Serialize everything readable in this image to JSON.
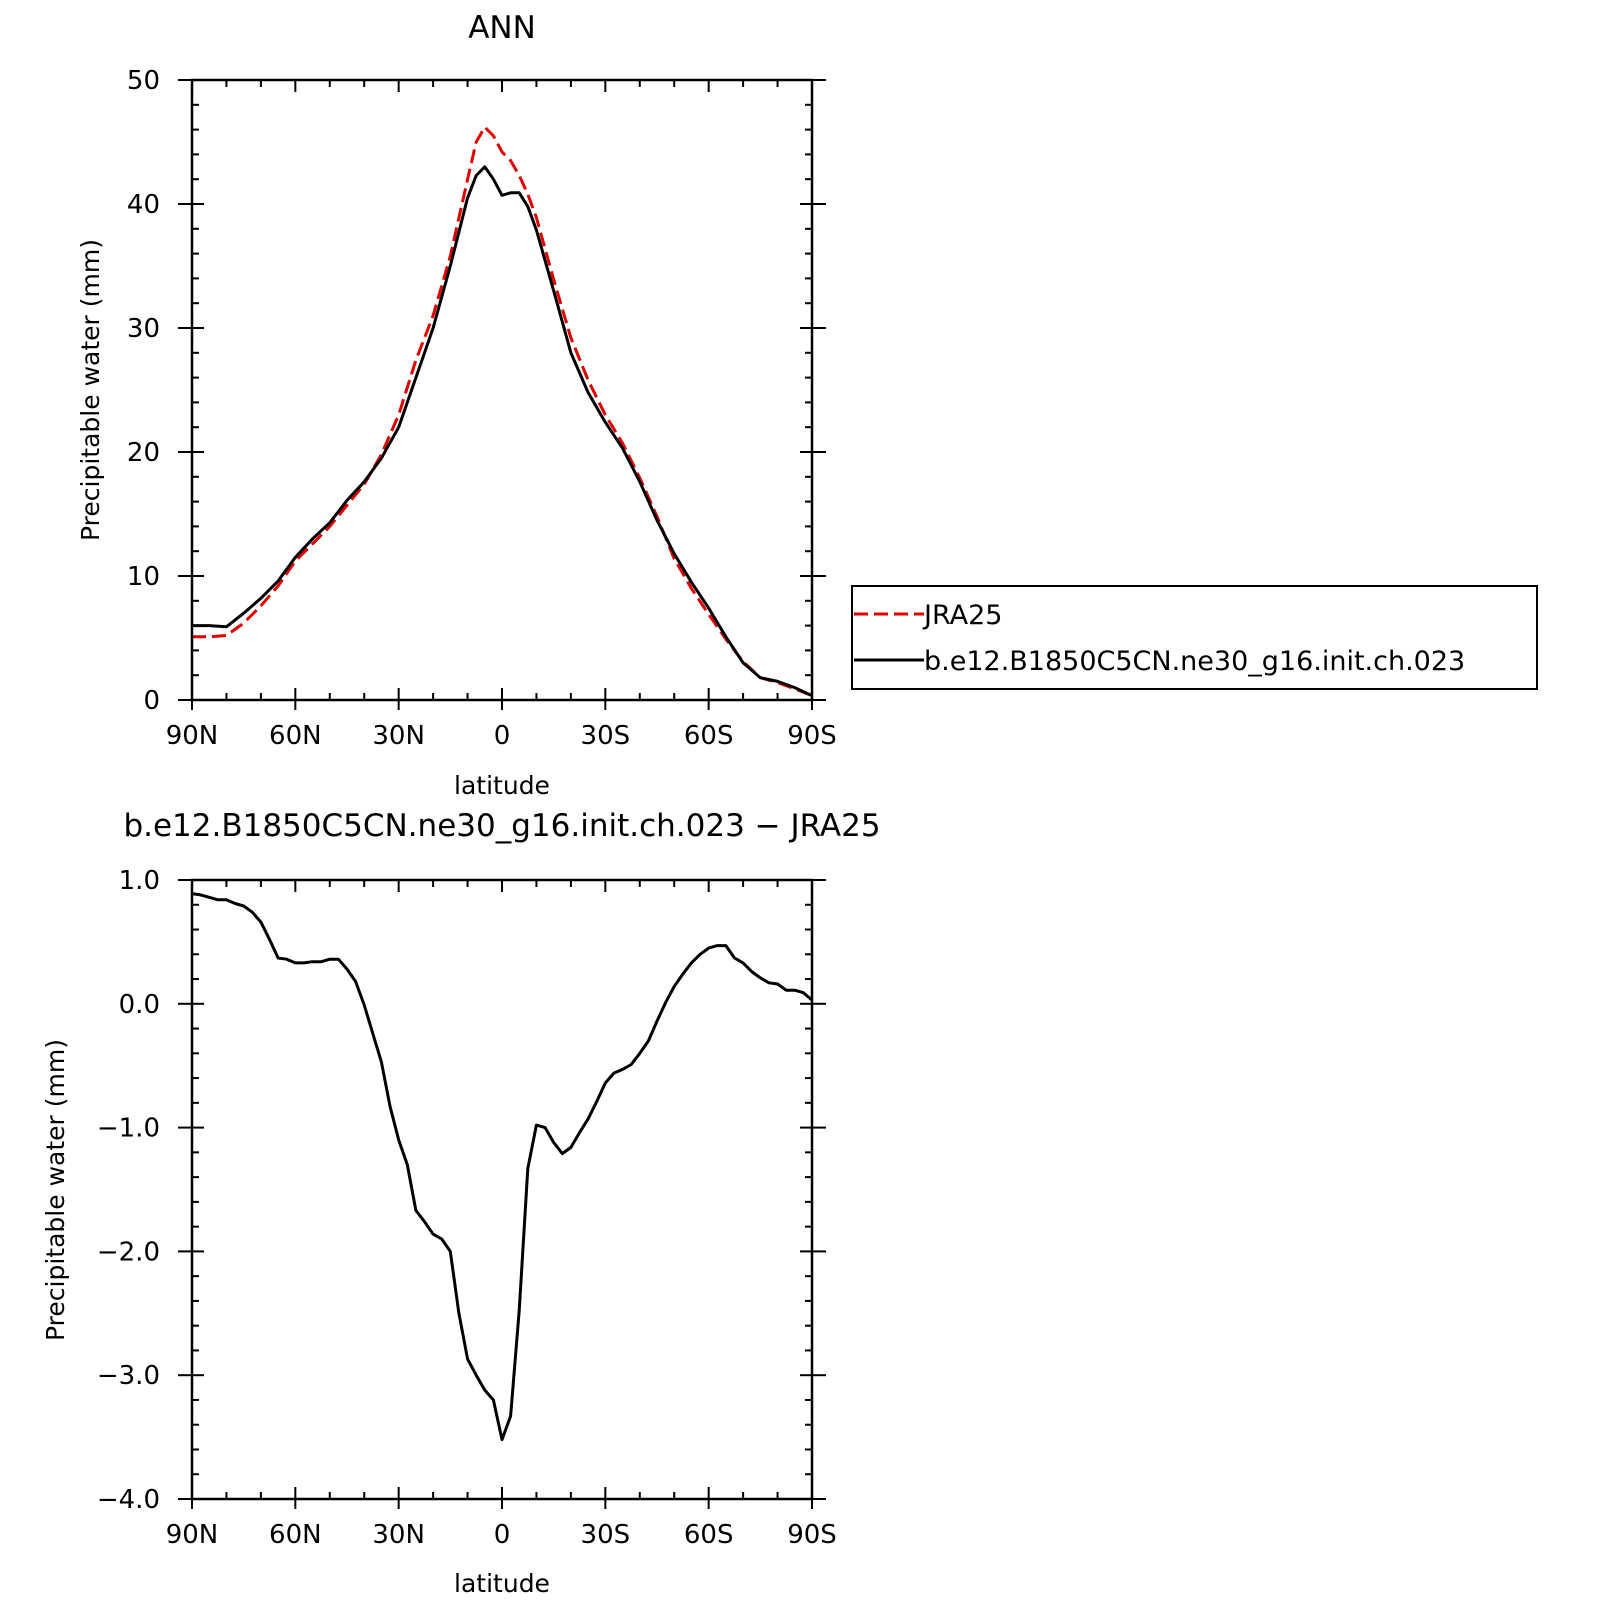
{
  "chart_data": [
    {
      "type": "line",
      "title": "ANN",
      "xlabel": "latitude",
      "ylabel": "Precipitable water (mm)",
      "xlim": [
        90,
        -90
      ],
      "ylim": [
        0,
        50
      ],
      "xticks": [
        {
          "value": 90,
          "label": "90N"
        },
        {
          "value": 60,
          "label": "60N"
        },
        {
          "value": 30,
          "label": "30N"
        },
        {
          "value": 0,
          "label": "0"
        },
        {
          "value": -30,
          "label": "30S"
        },
        {
          "value": -60,
          "label": "60S"
        },
        {
          "value": -90,
          "label": "90S"
        }
      ],
      "yticks": [
        {
          "value": 0,
          "label": "0"
        },
        {
          "value": 10,
          "label": "10"
        },
        {
          "value": 20,
          "label": "20"
        },
        {
          "value": 30,
          "label": "30"
        },
        {
          "value": 40,
          "label": "40"
        },
        {
          "value": 50,
          "label": "50"
        }
      ],
      "legend_position": "right-outside",
      "series": [
        {
          "name": "JRA25",
          "color": "#e00000",
          "dash": "dashed",
          "x": [
            90,
            85,
            80,
            75,
            70,
            65,
            60,
            55,
            50,
            45,
            40,
            35,
            30,
            25,
            20,
            15,
            10,
            7.5,
            5,
            2.5,
            0,
            -2.5,
            -5,
            -7.5,
            -10,
            -15,
            -20,
            -25,
            -30,
            -35,
            -40,
            -45,
            -50,
            -55,
            -60,
            -65,
            -70,
            -75,
            -80,
            -85,
            -90
          ],
          "y": [
            5.1,
            5.1,
            5.2,
            6.2,
            7.6,
            9.2,
            11.2,
            12.6,
            14.0,
            15.7,
            17.4,
            19.8,
            23.0,
            27.4,
            31.0,
            35.8,
            42.0,
            45.0,
            46.2,
            45.5,
            44.2,
            43.5,
            42.3,
            40.8,
            38.9,
            33.9,
            29.2,
            25.8,
            23.0,
            20.7,
            17.9,
            14.8,
            11.4,
            9.0,
            6.9,
            4.9,
            3.1,
            1.8,
            1.4,
            0.9,
            0.35
          ]
        },
        {
          "name": "b.e12.B1850C5CN.ne30_g16.init.ch.023",
          "color": "#000000",
          "dash": "solid",
          "x": [
            90,
            85,
            80,
            75,
            70,
            65,
            60,
            55,
            50,
            45,
            40,
            35,
            30,
            25,
            20,
            15,
            10,
            7.5,
            5,
            2.5,
            0,
            -2.5,
            -5,
            -7.5,
            -10,
            -15,
            -20,
            -25,
            -30,
            -35,
            -40,
            -45,
            -50,
            -55,
            -60,
            -65,
            -70,
            -75,
            -80,
            -85,
            -90
          ],
          "y": [
            6.0,
            6.0,
            5.9,
            7.0,
            8.2,
            9.6,
            11.5,
            13.0,
            14.3,
            16.1,
            17.6,
            19.5,
            22.0,
            26.0,
            30.0,
            35.0,
            40.5,
            42.3,
            43.0,
            42.0,
            40.7,
            40.9,
            40.9,
            39.8,
            37.9,
            33.0,
            28.0,
            24.8,
            22.4,
            20.3,
            17.6,
            14.5,
            11.8,
            9.5,
            7.4,
            5.1,
            3.0,
            1.8,
            1.5,
            1.0,
            0.35
          ]
        }
      ]
    },
    {
      "type": "line",
      "title": "b.e12.B1850C5CN.ne30_g16.init.ch.023 − JRA25",
      "xlabel": "latitude",
      "ylabel": "Precipitable water (mm)",
      "xlim": [
        90,
        -90
      ],
      "ylim": [
        -4.0,
        1.0
      ],
      "xticks": [
        {
          "value": 90,
          "label": "90N"
        },
        {
          "value": 60,
          "label": "60N"
        },
        {
          "value": 30,
          "label": "30N"
        },
        {
          "value": 0,
          "label": "0"
        },
        {
          "value": -30,
          "label": "30S"
        },
        {
          "value": -60,
          "label": "60S"
        },
        {
          "value": -90,
          "label": "90S"
        }
      ],
      "yticks": [
        {
          "value": -4,
          "label": "−4.0"
        },
        {
          "value": -3,
          "label": "−3.0"
        },
        {
          "value": -2,
          "label": "−2.0"
        },
        {
          "value": -1,
          "label": "−1.0"
        },
        {
          "value": 0,
          "label": "0.0"
        },
        {
          "value": 1,
          "label": "1.0"
        }
      ],
      "series": [
        {
          "color": "#000000",
          "dash": "solid",
          "x": [
            90,
            87.5,
            85,
            82.5,
            80,
            77.5,
            75,
            72.5,
            70,
            67.5,
            65,
            62.5,
            60,
            57.5,
            55,
            52.5,
            50,
            47.5,
            45,
            42.5,
            40,
            37.5,
            35,
            32.5,
            30,
            27.5,
            25,
            22.5,
            20,
            17.5,
            15,
            12.5,
            10,
            7.5,
            5,
            2.5,
            0,
            -2.5,
            -5,
            -7.5,
            -10,
            -12.5,
            -15,
            -17.5,
            -20,
            -22.5,
            -25,
            -27.5,
            -30,
            -32.5,
            -35,
            -37.5,
            -40,
            -42.5,
            -45,
            -47.5,
            -50,
            -52.5,
            -55,
            -57.5,
            -60,
            -62.5,
            -65,
            -67.5,
            -70,
            -72.5,
            -75,
            -77.5,
            -80,
            -82.5,
            -85,
            -87.5,
            -90
          ],
          "y": [
            0.89,
            0.88,
            0.86,
            0.84,
            0.84,
            0.81,
            0.79,
            0.74,
            0.66,
            0.52,
            0.37,
            0.36,
            0.33,
            0.33,
            0.34,
            0.34,
            0.36,
            0.36,
            0.28,
            0.18,
            -0.01,
            -0.24,
            -0.47,
            -0.83,
            -1.1,
            -1.3,
            -1.67,
            -1.76,
            -1.86,
            -1.9,
            -2.0,
            -2.5,
            -2.87,
            -3.0,
            -3.12,
            -3.2,
            -3.52,
            -3.33,
            -2.48,
            -1.33,
            -0.98,
            -1.0,
            -1.12,
            -1.21,
            -1.16,
            -1.04,
            -0.93,
            -0.79,
            -0.64,
            -0.56,
            -0.53,
            -0.49,
            -0.4,
            -0.3,
            -0.14,
            0.01,
            0.14,
            0.24,
            0.33,
            0.4,
            0.45,
            0.47,
            0.47,
            0.37,
            0.33,
            0.26,
            0.21,
            0.17,
            0.16,
            0.11,
            0.11,
            0.09,
            0.03
          ]
        }
      ]
    }
  ]
}
